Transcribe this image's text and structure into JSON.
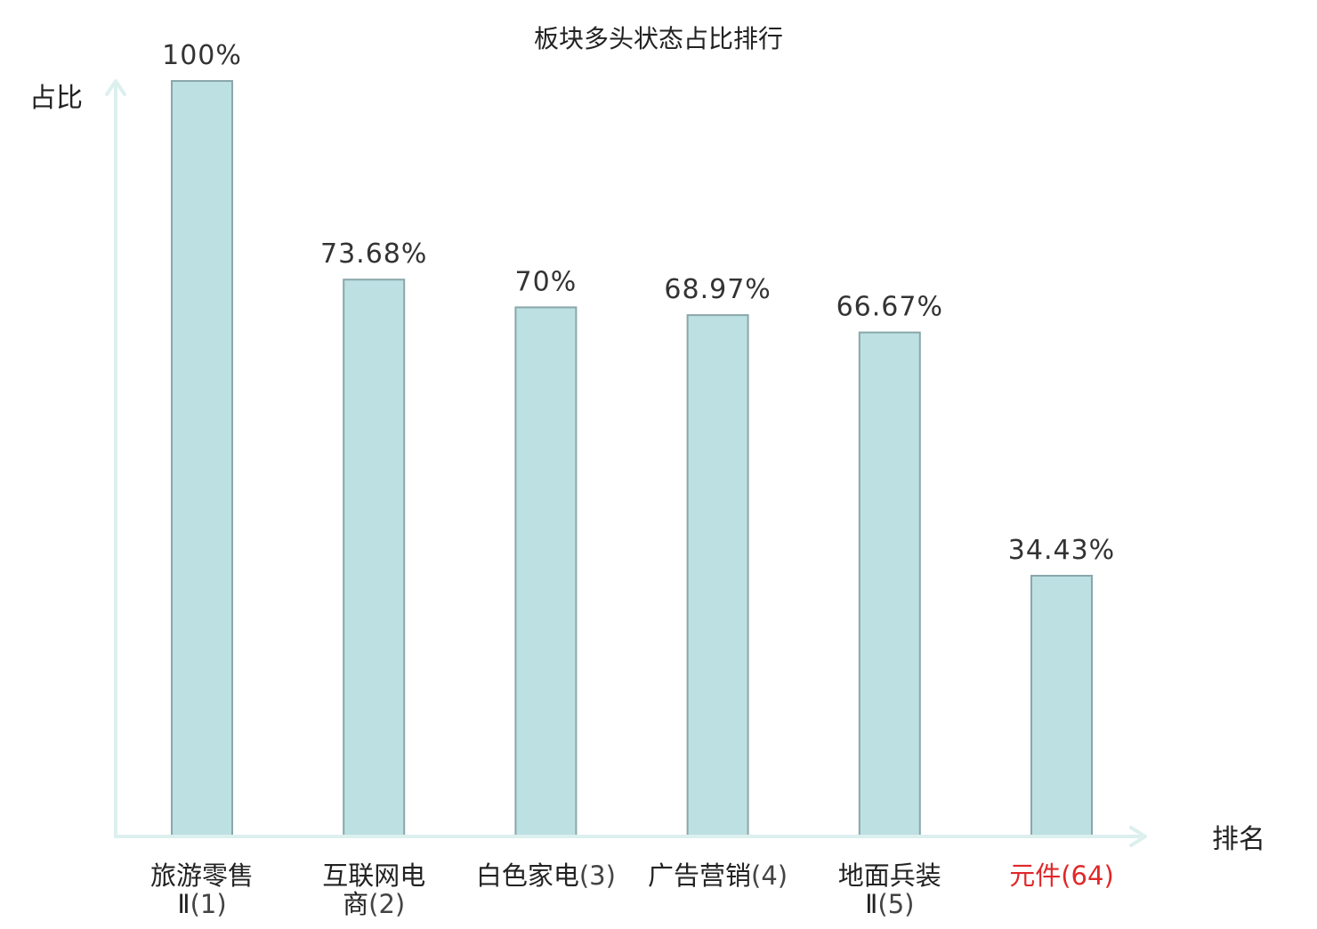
{
  "chart_data": {
    "type": "bar",
    "title": "板块多头状态占比排行",
    "xlabel": "排名",
    "ylabel": "占比",
    "ylim": [
      0,
      100
    ],
    "grid": false,
    "categories": [
      {
        "name_lines": [
          "旅游零售",
          "Ⅱ"
        ],
        "rank": "(1)",
        "highlight": false
      },
      {
        "name_lines": [
          "互联网电",
          "商"
        ],
        "rank": "(2)",
        "highlight": false
      },
      {
        "name_lines": [
          "白色家电"
        ],
        "rank": "(3)",
        "highlight": false
      },
      {
        "name_lines": [
          "广告营销"
        ],
        "rank": "(4)",
        "highlight": false
      },
      {
        "name_lines": [
          "地面兵装",
          "Ⅱ"
        ],
        "rank": "(5)",
        "highlight": false
      },
      {
        "name_lines": [
          "元件"
        ],
        "rank": "(64)",
        "highlight": true
      }
    ],
    "values": [
      100,
      73.68,
      70,
      68.97,
      66.67,
      34.43
    ],
    "value_labels": [
      "100%",
      "73.68%",
      "70%",
      "68.97%",
      "66.67%",
      "34.43%"
    ],
    "colors": {
      "bar_fill": "#bde0e3",
      "bar_stroke": "#8aa7aa",
      "axis": "#dcf0ee",
      "highlight_text": "#e0282a"
    }
  }
}
